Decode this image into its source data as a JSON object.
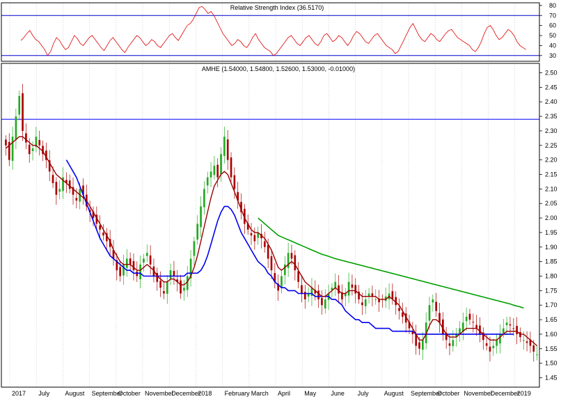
{
  "colors": {
    "background": "#ffffff",
    "frame": "#000000",
    "grid": "#b8b8b8",
    "rsi_line": "#e00000",
    "rsi_bands": "#0000cc",
    "hline": "#0000ff",
    "candle_up": "#22aa22",
    "candle_down": "#aa0000",
    "ma_short": "#990000",
    "ma_mid": "#0000ee",
    "ma_long": "#00a000"
  },
  "chart_data": [
    {
      "type": "line",
      "title": "Relative Strength Index (36.5170)",
      "ylim": [
        25,
        82
      ],
      "yticks": [
        80,
        70,
        60,
        50,
        40,
        30
      ],
      "bands": [
        70,
        30
      ],
      "grid": "vertical dotted",
      "series": [
        {
          "values": [
            45,
            48,
            52,
            55,
            50,
            46,
            44,
            40,
            36,
            30,
            34,
            42,
            48,
            45,
            40,
            36,
            38,
            44,
            50,
            47,
            42,
            40,
            44,
            48,
            50,
            46,
            42,
            38,
            35,
            40,
            45,
            48,
            44,
            40,
            36,
            33,
            38,
            42,
            46,
            50,
            48,
            44,
            40,
            42,
            46,
            44,
            40,
            38,
            42,
            46,
            50,
            52,
            48,
            45,
            50,
            55,
            60,
            62,
            66,
            72,
            78,
            79,
            76,
            72,
            74,
            70,
            64,
            58,
            52,
            48,
            44,
            40,
            42,
            46,
            44,
            40,
            38,
            42,
            48,
            52,
            46,
            42,
            38,
            36,
            34,
            30,
            32,
            36,
            40,
            44,
            48,
            50,
            46,
            42,
            40,
            44,
            48,
            50,
            46,
            42,
            40,
            44,
            50,
            52,
            48,
            44,
            46,
            50,
            48,
            44,
            40,
            44,
            50,
            54,
            52,
            48,
            44,
            42,
            46,
            50,
            52,
            48,
            44,
            40,
            38,
            36,
            32,
            34,
            40,
            46,
            52,
            58,
            62,
            56,
            50,
            46,
            44,
            48,
            52,
            50,
            46,
            44,
            48,
            52,
            55,
            56,
            52,
            48,
            46,
            44,
            42,
            40,
            36,
            34,
            38,
            44,
            52,
            58,
            60,
            56,
            50,
            46,
            48,
            52,
            56,
            54,
            50,
            44,
            40,
            38,
            36
          ]
        }
      ]
    },
    {
      "type": "candlestick",
      "title": "AMHE (1.54000, 1.54800, 1.52600, 1.53000, -0.01000)",
      "ylim": [
        1.42,
        2.53
      ],
      "yticks": [
        2.5,
        2.45,
        2.4,
        2.35,
        2.3,
        2.25,
        2.2,
        2.15,
        2.1,
        2.05,
        2.0,
        1.95,
        1.9,
        1.85,
        1.8,
        1.75,
        1.7,
        1.65,
        1.6,
        1.55,
        1.5,
        1.45
      ],
      "horizontal_line": 2.34,
      "x_labels": [
        "2017",
        "July",
        "August",
        "September",
        "October",
        "November",
        "December",
        "2018",
        "February",
        "March",
        "April",
        "May",
        "June",
        "July",
        "August",
        "September",
        "October",
        "November",
        "December",
        "2019"
      ],
      "close": [
        2.25,
        2.2,
        2.28,
        2.35,
        2.42,
        2.3,
        2.26,
        2.22,
        2.24,
        2.28,
        2.25,
        2.22,
        2.2,
        2.16,
        2.12,
        2.08,
        2.1,
        2.14,
        2.12,
        2.1,
        2.08,
        2.06,
        2.1,
        2.08,
        2.04,
        2.02,
        2.0,
        1.98,
        1.96,
        1.94,
        1.92,
        1.9,
        1.86,
        1.82,
        1.8,
        1.84,
        1.86,
        1.84,
        1.82,
        1.8,
        1.84,
        1.86,
        1.88,
        1.84,
        1.8,
        1.78,
        1.76,
        1.74,
        1.78,
        1.82,
        1.8,
        1.78,
        1.74,
        1.76,
        1.8,
        1.86,
        1.92,
        1.98,
        2.04,
        2.1,
        2.14,
        2.16,
        2.18,
        2.14,
        2.22,
        2.28,
        2.2,
        2.14,
        2.1,
        2.06,
        2.02,
        1.98,
        1.96,
        1.94,
        1.92,
        1.95,
        1.93,
        1.9,
        1.86,
        1.82,
        1.78,
        1.75,
        1.8,
        1.84,
        1.88,
        1.86,
        1.82,
        1.78,
        1.74,
        1.72,
        1.74,
        1.76,
        1.74,
        1.72,
        1.7,
        1.72,
        1.74,
        1.76,
        1.78,
        1.74,
        1.72,
        1.74,
        1.78,
        1.76,
        1.74,
        1.72,
        1.7,
        1.72,
        1.74,
        1.73,
        1.72,
        1.71,
        1.72,
        1.73,
        1.74,
        1.72,
        1.7,
        1.68,
        1.66,
        1.64,
        1.62,
        1.6,
        1.56,
        1.55,
        1.58,
        1.64,
        1.7,
        1.72,
        1.68,
        1.64,
        1.6,
        1.58,
        1.56,
        1.58,
        1.6,
        1.62,
        1.64,
        1.66,
        1.65,
        1.64,
        1.62,
        1.6,
        1.58,
        1.56,
        1.54,
        1.56,
        1.58,
        1.6,
        1.62,
        1.64,
        1.63,
        1.62,
        1.6,
        1.59,
        1.58,
        1.57,
        1.56,
        1.54,
        1.53
      ],
      "series": [
        {
          "start_index": 0,
          "values": [
            2.24,
            2.25,
            2.26,
            2.27,
            2.28,
            2.28,
            2.27,
            2.26,
            2.25,
            2.25,
            2.24,
            2.23,
            2.21,
            2.19,
            2.17,
            2.15,
            2.14,
            2.13,
            2.12,
            2.11,
            2.1,
            2.09,
            2.08,
            2.07,
            2.06,
            2.04,
            2.02,
            2.0,
            1.98,
            1.96,
            1.94,
            1.92,
            1.89,
            1.87,
            1.85,
            1.84,
            1.84,
            1.84,
            1.83,
            1.82,
            1.82,
            1.83,
            1.84,
            1.83,
            1.82,
            1.8,
            1.79,
            1.78,
            1.78,
            1.79,
            1.79,
            1.78,
            1.77,
            1.77,
            1.78,
            1.8,
            1.83,
            1.87,
            1.92,
            1.97,
            2.02,
            2.07,
            2.11,
            2.13,
            2.15,
            2.16,
            2.15,
            2.12,
            2.09,
            2.06,
            2.03,
            2.0,
            1.98,
            1.96,
            1.95,
            1.95,
            1.94,
            1.93,
            1.91,
            1.89,
            1.86,
            1.83,
            1.82,
            1.83,
            1.84,
            1.85,
            1.84,
            1.82,
            1.8,
            1.78,
            1.77,
            1.76,
            1.75,
            1.74,
            1.73,
            1.73,
            1.74,
            1.75,
            1.76,
            1.75,
            1.74,
            1.74,
            1.75,
            1.75,
            1.75,
            1.74,
            1.73,
            1.73,
            1.73,
            1.73,
            1.73,
            1.72,
            1.72,
            1.72,
            1.73,
            1.72,
            1.71,
            1.7,
            1.68,
            1.66,
            1.64,
            1.62,
            1.6,
            1.58,
            1.58,
            1.6,
            1.63,
            1.65,
            1.65,
            1.64,
            1.62,
            1.6,
            1.59,
            1.59,
            1.59,
            1.6,
            1.61,
            1.62,
            1.62,
            1.62,
            1.62,
            1.61,
            1.6,
            1.59,
            1.58,
            1.58,
            1.58,
            1.59,
            1.6,
            1.61,
            1.61,
            1.61,
            1.61,
            1.6,
            1.6,
            1.59,
            1.58,
            1.57,
            1.56
          ]
        },
        {
          "start_index": 18,
          "values": [
            2.2,
            2.18,
            2.16,
            2.14,
            2.11,
            2.08,
            2.05,
            2.02,
            1.99,
            1.96,
            1.93,
            1.91,
            1.89,
            1.87,
            1.86,
            1.85,
            1.84,
            1.83,
            1.82,
            1.82,
            1.81,
            1.81,
            1.81,
            1.8,
            1.8,
            1.8,
            1.8,
            1.8,
            1.8,
            1.8,
            1.8,
            1.8,
            1.8,
            1.8,
            1.8,
            1.8,
            1.81,
            1.81,
            1.81,
            1.81,
            1.82,
            1.84,
            1.87,
            1.91,
            1.95,
            1.99,
            2.02,
            2.04,
            2.04,
            2.03,
            2.01,
            1.98,
            1.95,
            1.93,
            1.91,
            1.89,
            1.87,
            1.85,
            1.84,
            1.83,
            1.81,
            1.8,
            1.78,
            1.77,
            1.76,
            1.76,
            1.75,
            1.75,
            1.75,
            1.74,
            1.74,
            1.74,
            1.74,
            1.74,
            1.73,
            1.73,
            1.73,
            1.73,
            1.73,
            1.72,
            1.72,
            1.71,
            1.7,
            1.68,
            1.67,
            1.66,
            1.65,
            1.65,
            1.64,
            1.64,
            1.64,
            1.63,
            1.62,
            1.62,
            1.62,
            1.62,
            1.62,
            1.61,
            1.61,
            1.61,
            1.61,
            1.61,
            1.61,
            1.61,
            1.6,
            1.6,
            1.6,
            1.6,
            1.6,
            1.6,
            1.6,
            1.6,
            1.6,
            1.6,
            1.6,
            1.6,
            1.6,
            1.6,
            1.6,
            1.6,
            1.6,
            1.6,
            1.6,
            1.6,
            1.6,
            1.6,
            1.6,
            1.6,
            1.6,
            1.6,
            1.6,
            1.6,
            1.6,
            1.6
          ]
        },
        {
          "start_index": 75,
          "values": [
            2.0,
            1.99,
            1.98,
            1.97,
            1.96,
            1.95,
            1.94,
            1.935,
            1.93,
            1.925,
            1.92,
            1.915,
            1.91,
            1.905,
            1.9,
            1.895,
            1.89,
            1.885,
            1.88,
            1.875,
            1.872,
            1.868,
            1.864,
            1.86,
            1.857,
            1.854,
            1.851,
            1.848,
            1.845,
            1.842,
            1.839,
            1.836,
            1.833,
            1.83,
            1.827,
            1.824,
            1.821,
            1.818,
            1.815,
            1.812,
            1.809,
            1.806,
            1.803,
            1.8,
            1.797,
            1.794,
            1.791,
            1.788,
            1.785,
            1.782,
            1.779,
            1.776,
            1.773,
            1.77,
            1.767,
            1.764,
            1.761,
            1.758,
            1.755,
            1.752,
            1.749,
            1.746,
            1.743,
            1.74,
            1.737,
            1.734,
            1.731,
            1.728,
            1.725,
            1.722,
            1.719,
            1.716,
            1.713,
            1.71,
            1.707,
            1.704,
            1.7,
            1.697,
            1.694,
            1.69
          ]
        }
      ]
    }
  ]
}
